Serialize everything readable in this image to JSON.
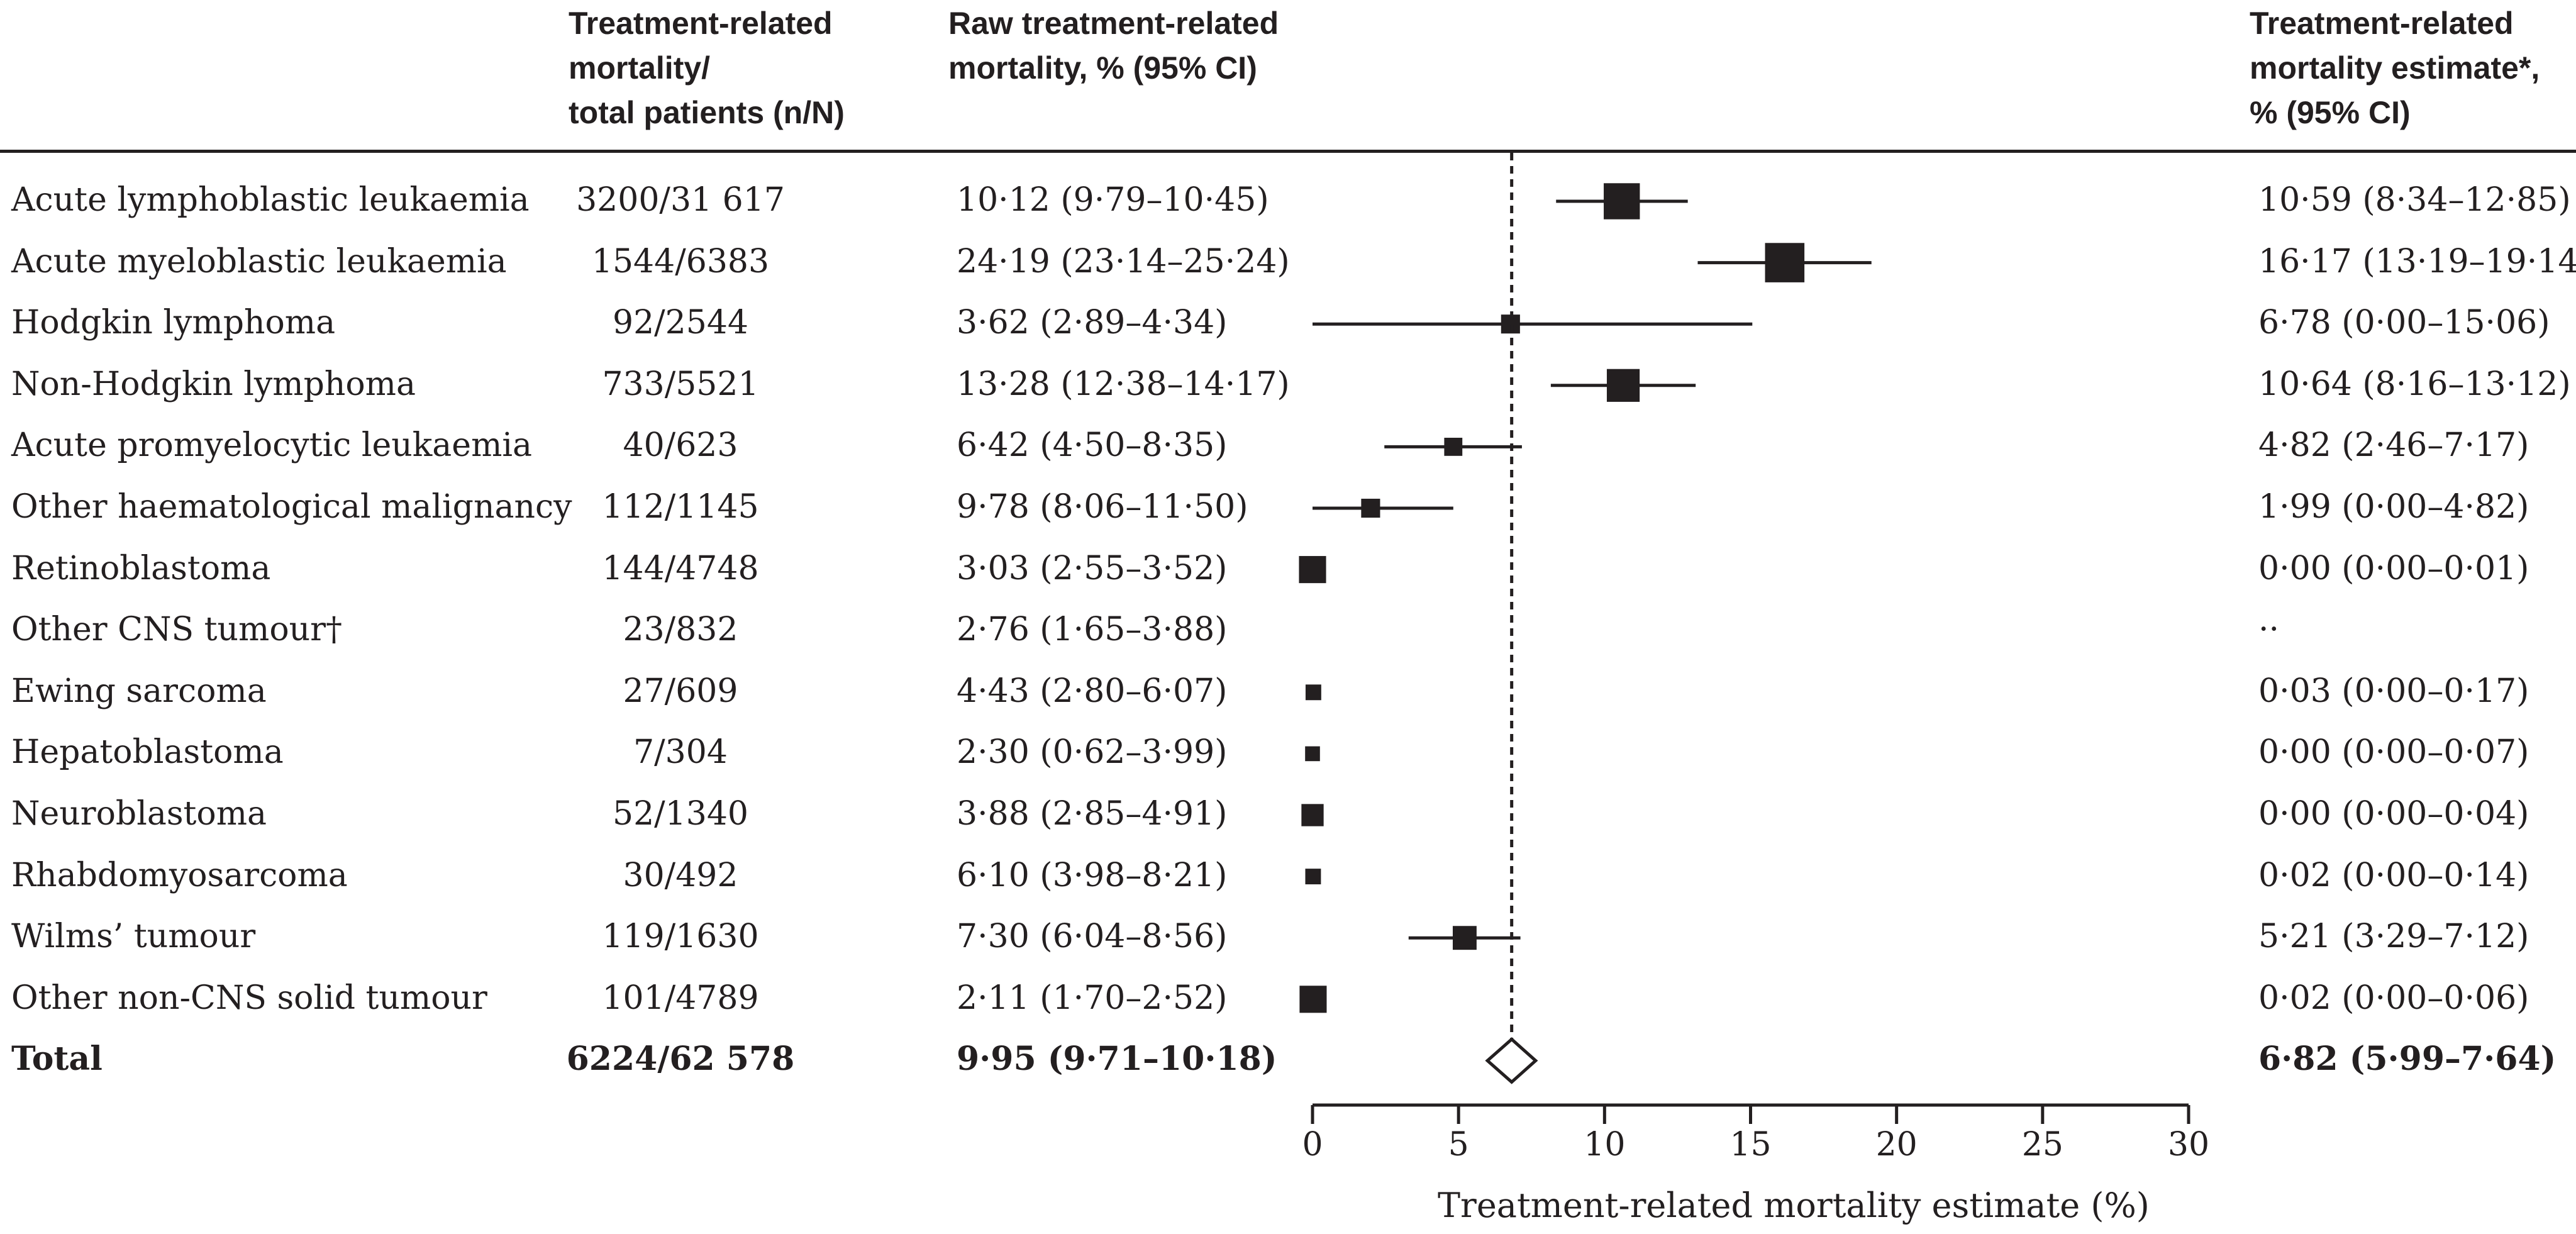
{
  "headers": {
    "count": "Treatment-related\nmortality/\ntotal patients (n/N)",
    "raw": "Raw treatment-related\nmortality, % (95% CI)",
    "estimate": "Treatment-related\nmortality estimate*,\n % (95% CI)"
  },
  "chart_data": {
    "type": "forest",
    "xlabel": "Treatment-related mortality estimate (%)",
    "xlim": [
      0,
      30
    ],
    "xticks": [
      0,
      5,
      10,
      15,
      20,
      25,
      30
    ],
    "reference_line": 6.82,
    "rows": [
      {
        "label": "Acute lymphoblastic leukaemia",
        "count": "3200/31 617",
        "raw": "10·12 (9·79–10·45)",
        "estimate": "10·59 (8·34–12·85)",
        "est": 10.59,
        "lo": 8.34,
        "hi": 12.85,
        "weight": 3.8
      },
      {
        "label": "Acute myeloblastic leukaemia",
        "count": "1544/6383",
        "raw": "24·19 (23·14–25·24)",
        "estimate": "16·17 (13·19–19·14)",
        "est": 16.17,
        "lo": 13.19,
        "hi": 19.14,
        "weight": 4.2
      },
      {
        "label": "Hodgkin lymphoma",
        "count": "92/2544",
        "raw": "3·62 (2·89–4·34)",
        "estimate": "6·78 (0·00–15·06)",
        "est": 6.78,
        "lo": 0.0,
        "hi": 15.06,
        "weight": 1.7
      },
      {
        "label": "Non-Hodgkin lymphoma",
        "count": "733/5521",
        "raw": "13·28 (12·38–14·17)",
        "estimate": "10·64 (8·16–13·12)",
        "est": 10.64,
        "lo": 8.16,
        "hi": 13.12,
        "weight": 3.4
      },
      {
        "label": "Acute promyelocytic leukaemia",
        "count": "40/623",
        "raw": "6·42 (4·50–8·35)",
        "estimate": "4·82 (2·46–7·17)",
        "est": 4.82,
        "lo": 2.46,
        "hi": 7.17,
        "weight": 1.6
      },
      {
        "label": "Other haematological malignancy",
        "count": "112/1145",
        "raw": "9·78 (8·06–11·50)",
        "estimate": "1·99 (0·00–4·82)",
        "est": 1.99,
        "lo": 0.0,
        "hi": 4.82,
        "weight": 1.7
      },
      {
        "label": "Retinoblastoma",
        "count": "144/4748",
        "raw": "3·03 (2·55–3·52)",
        "estimate": "0·00 (0·00–0·01)",
        "est": 0.0,
        "lo": 0.0,
        "hi": 0.01,
        "weight": 2.7
      },
      {
        "label": "Other CNS tumour†",
        "count": "23/832",
        "raw": "2·76 (1·65–3·88)",
        "estimate": "··",
        "est": null,
        "lo": null,
        "hi": null,
        "weight": 0
      },
      {
        "label": "Ewing sarcoma",
        "count": "27/609",
        "raw": "4·43 (2·80–6·07)",
        "estimate": "0·03 (0·00–0·17)",
        "est": 0.03,
        "lo": 0.0,
        "hi": 0.17,
        "weight": 1.3
      },
      {
        "label": "Hepatoblastoma",
        "count": "7/304",
        "raw": "2·30 (0·62–3·99)",
        "estimate": "0·00 (0·00–0·07)",
        "est": 0.0,
        "lo": 0.0,
        "hi": 0.07,
        "weight": 1.2
      },
      {
        "label": "Neuroblastoma",
        "count": "52/1340",
        "raw": "3·88 (2·85–4·91)",
        "estimate": "0·00 (0·00–0·04)",
        "est": 0.0,
        "lo": 0.0,
        "hi": 0.04,
        "weight": 2.1
      },
      {
        "label": "Rhabdomyosarcoma",
        "count": "30/492",
        "raw": "6·10 (3·98–8·21)",
        "estimate": "0·02 (0·00–0·14)",
        "est": 0.02,
        "lo": 0.0,
        "hi": 0.14,
        "weight": 1.3
      },
      {
        "label": "Wilms’ tumour",
        "count": "119/1630",
        "raw": "7·30 (6·04–8·56)",
        "estimate": "5·21 (3·29–7·12)",
        "est": 5.21,
        "lo": 3.29,
        "hi": 7.12,
        "weight": 2.3
      },
      {
        "label": "Other non-CNS solid tumour",
        "count": "101/4789",
        "raw": "2·11 (1·70–2·52)",
        "estimate": "0·02 (0·00–0·06)",
        "est": 0.02,
        "lo": 0.0,
        "hi": 0.06,
        "weight": 2.7
      }
    ],
    "total": {
      "label": "Total",
      "count": "6224/62 578",
      "raw": "9·95 (9·71–10·18)",
      "estimate": "6·82 (5·99–7·64)",
      "est": 6.82,
      "lo": 5.99,
      "hi": 7.64
    }
  }
}
